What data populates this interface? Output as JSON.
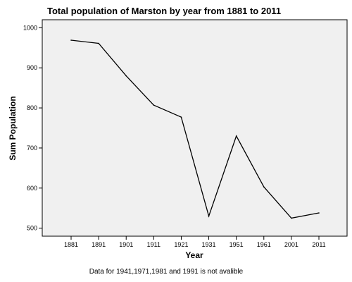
{
  "chart_data": {
    "type": "line",
    "title": "Total population of Marston by year from 1881 to 2011",
    "xlabel": "Year",
    "ylabel": "Sum Population",
    "categories": [
      "1881",
      "1891",
      "1901",
      "1911",
      "1921",
      "1931",
      "1951",
      "1961",
      "2001",
      "2011"
    ],
    "series": [
      {
        "values": [
          969,
          961,
          880,
          807,
          777,
          530,
          730,
          603,
          525,
          538
        ],
        "color": "#000000"
      }
    ],
    "ylim": [
      480,
      1020
    ],
    "yticks": [
      500,
      600,
      700,
      800,
      900,
      1000
    ],
    "ytick_labels": [
      "500",
      "600",
      "700",
      "800",
      "900",
      "1000"
    ],
    "grid": false,
    "legend": "none",
    "plot_background": "#f0f0f0",
    "footnote": "Data for 1941,1971,1981 and 1991 is not avalible"
  }
}
